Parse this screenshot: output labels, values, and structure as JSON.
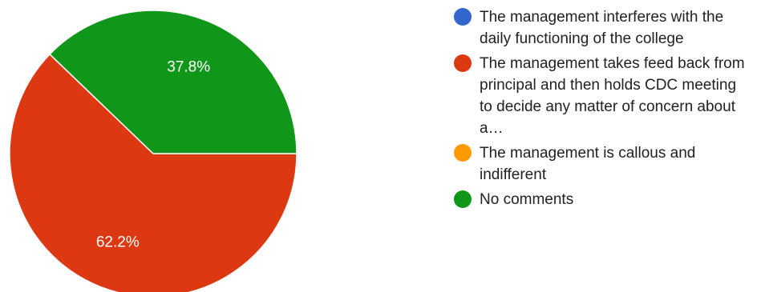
{
  "chart_data": {
    "type": "pie",
    "categories": [
      "The management interferes with the daily functioning of the college",
      "The management takes feed back from principal and then holds CDC meeting to decide any matter of concern about a…",
      "The management is callous and indifferent",
      "No comments"
    ],
    "values": [
      0,
      62.2,
      0,
      37.8
    ],
    "value_labels": [
      "",
      "62.2%",
      "",
      "37.8%"
    ],
    "colors": [
      "#3366cc",
      "#dc3912",
      "#ff9900",
      "#109618"
    ],
    "legend_position": "right"
  }
}
